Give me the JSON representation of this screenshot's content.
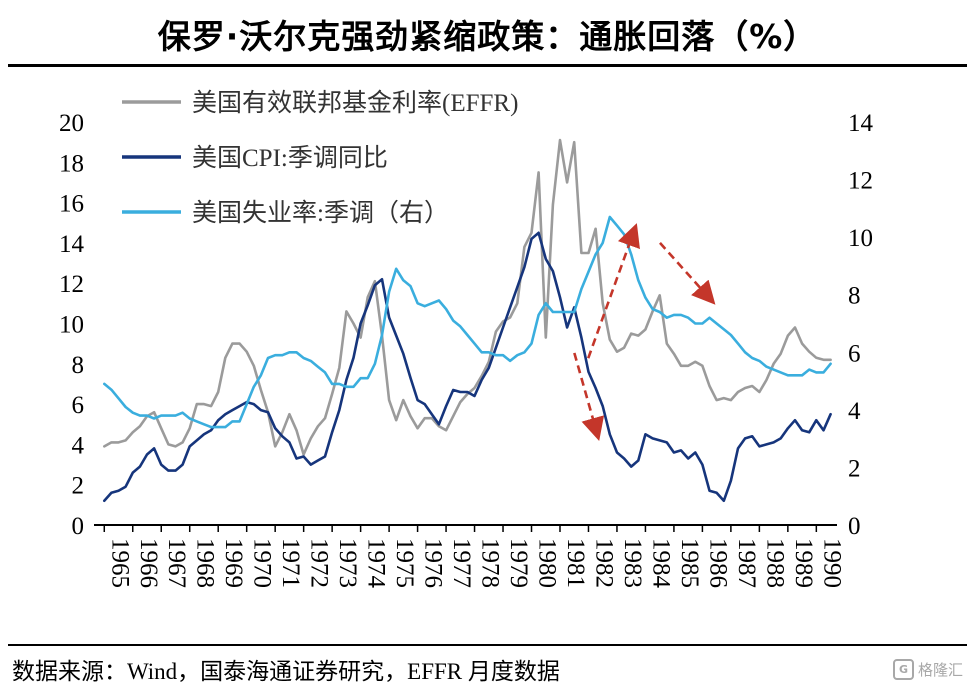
{
  "title": "保罗·沃尔克强劲紧缩政策：通胀回落（%）",
  "footer": {
    "source": "数据来源：Wind，国泰海通证券研究，EFFR 月度数据",
    "logo_text": "格隆汇",
    "logo_icon": "G"
  },
  "colors": {
    "effr": "#9b9b9b",
    "cpi": "#16357c",
    "unemployment": "#3aaede",
    "arrow": "#c4362a",
    "axis": "#000000",
    "legend_text": "#333333"
  },
  "chart_data": {
    "type": "line",
    "title": "保罗·沃尔克强劲紧缩政策：通胀回落（%）",
    "x_start": 1965,
    "x_step": 0.25,
    "x_axis": {
      "tick_start": 1965,
      "tick_end": 1990,
      "label_rotation": 90
    },
    "y_left": {
      "min": 0,
      "max": 20,
      "step": 2
    },
    "y_right": {
      "min": 0,
      "max": 14,
      "step": 2
    },
    "grid": false,
    "legend_position": "upper-left-inside",
    "series": [
      {
        "name": "美国有效联邦基金利率(EFFR)",
        "axis": "left",
        "color": "#9b9b9b",
        "values": [
          3.9,
          4.1,
          4.1,
          4.2,
          4.6,
          4.9,
          5.4,
          5.6,
          4.8,
          4.0,
          3.9,
          4.1,
          4.8,
          6.0,
          6.0,
          5.9,
          6.6,
          8.3,
          9.0,
          9.0,
          8.6,
          7.9,
          6.7,
          5.6,
          3.9,
          4.6,
          5.5,
          4.7,
          3.5,
          4.3,
          4.9,
          5.3,
          6.5,
          7.8,
          10.6,
          10.0,
          9.3,
          11.3,
          12.1,
          9.4,
          6.2,
          5.2,
          6.2,
          5.4,
          4.8,
          5.3,
          5.3,
          4.9,
          4.7,
          5.4,
          6.1,
          6.5,
          6.8,
          7.4,
          8.1,
          9.6,
          10.1,
          10.3,
          11.0,
          13.8,
          14.5,
          17.5,
          9.3,
          15.9,
          19.1,
          17.0,
          19.0,
          13.5,
          13.5,
          14.7,
          11.0,
          9.2,
          8.6,
          8.8,
          9.5,
          9.4,
          9.7,
          10.6,
          11.4,
          9.0,
          8.5,
          7.9,
          7.9,
          8.1,
          7.9,
          6.9,
          6.2,
          6.3,
          6.2,
          6.6,
          6.8,
          6.9,
          6.6,
          7.2,
          8.0,
          8.5,
          9.4,
          9.8,
          9.0,
          8.6,
          8.3,
          8.2,
          8.2
        ]
      },
      {
        "name": "美国CPI:季调同比",
        "axis": "left",
        "color": "#16357c",
        "values": [
          1.2,
          1.6,
          1.7,
          1.9,
          2.6,
          2.9,
          3.5,
          3.8,
          3.0,
          2.7,
          2.7,
          3.0,
          3.9,
          4.2,
          4.5,
          4.7,
          5.2,
          5.5,
          5.7,
          5.9,
          6.1,
          6.0,
          5.7,
          5.6,
          4.8,
          4.4,
          4.1,
          3.3,
          3.4,
          3.0,
          3.2,
          3.4,
          4.6,
          5.7,
          7.2,
          8.3,
          10.0,
          10.9,
          11.9,
          12.2,
          10.3,
          9.4,
          8.5,
          7.3,
          6.2,
          6.0,
          5.5,
          5.0,
          5.9,
          6.7,
          6.6,
          6.6,
          6.4,
          7.2,
          7.8,
          8.8,
          9.8,
          10.8,
          11.8,
          12.8,
          14.2,
          14.5,
          13.2,
          12.6,
          11.3,
          9.8,
          10.8,
          9.3,
          7.6,
          6.8,
          5.9,
          4.5,
          3.6,
          3.3,
          2.9,
          3.2,
          4.5,
          4.3,
          4.2,
          4.1,
          3.6,
          3.7,
          3.3,
          3.6,
          3.0,
          1.7,
          1.6,
          1.2,
          2.2,
          3.8,
          4.3,
          4.4,
          3.9,
          4.0,
          4.1,
          4.3,
          4.8,
          5.2,
          4.7,
          4.6,
          5.2,
          4.7,
          5.5
        ]
      },
      {
        "name": "美国失业率:季调（右）",
        "axis": "right",
        "color": "#3aaede",
        "values": [
          4.9,
          4.7,
          4.4,
          4.1,
          3.9,
          3.8,
          3.8,
          3.7,
          3.8,
          3.8,
          3.8,
          3.9,
          3.7,
          3.6,
          3.5,
          3.4,
          3.4,
          3.4,
          3.6,
          3.6,
          4.2,
          4.8,
          5.2,
          5.8,
          5.9,
          5.9,
          6.0,
          6.0,
          5.8,
          5.7,
          5.5,
          5.3,
          4.9,
          4.9,
          4.8,
          4.8,
          5.1,
          5.1,
          5.6,
          6.6,
          8.1,
          8.9,
          8.5,
          8.3,
          7.7,
          7.6,
          7.7,
          7.8,
          7.5,
          7.1,
          6.9,
          6.6,
          6.3,
          6.0,
          6.0,
          5.9,
          5.9,
          5.7,
          5.9,
          6.0,
          6.3,
          7.3,
          7.7,
          7.4,
          7.4,
          7.4,
          7.4,
          8.2,
          8.8,
          9.4,
          9.8,
          10.7,
          10.4,
          10.1,
          9.4,
          8.5,
          7.9,
          7.5,
          7.4,
          7.2,
          7.3,
          7.3,
          7.2,
          7.0,
          7.0,
          7.2,
          7.0,
          6.8,
          6.6,
          6.3,
          6.0,
          5.8,
          5.7,
          5.5,
          5.4,
          5.3,
          5.2,
          5.2,
          5.2,
          5.4,
          5.3,
          5.3,
          5.6
        ]
      }
    ],
    "annotations": [
      {
        "type": "arrow",
        "from": [
          0.667,
          0.586
        ],
        "to": [
          0.731,
          0.263
        ],
        "color": "#c4362a",
        "style": "dashed"
      },
      {
        "type": "arrow",
        "from": [
          0.765,
          0.3
        ],
        "to": [
          0.836,
          0.444
        ],
        "color": "#c4362a",
        "style": "dashed"
      },
      {
        "type": "arrow",
        "from": [
          0.648,
          0.573
        ],
        "to": [
          0.68,
          0.779
        ],
        "color": "#c4362a",
        "style": "dashed"
      }
    ]
  }
}
